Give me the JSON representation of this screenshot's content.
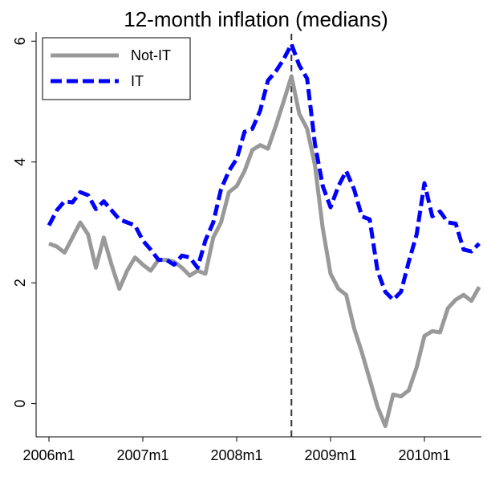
{
  "chart_data": {
    "type": "line",
    "title": "12-month inflation (medians)",
    "x": [
      "2006m1",
      "2006m2",
      "2006m3",
      "2006m4",
      "2006m5",
      "2006m6",
      "2006m7",
      "2006m8",
      "2006m9",
      "2006m10",
      "2006m11",
      "2006m12",
      "2007m1",
      "2007m2",
      "2007m3",
      "2007m4",
      "2007m5",
      "2007m6",
      "2007m7",
      "2007m8",
      "2007m9",
      "2007m10",
      "2007m11",
      "2007m12",
      "2008m1",
      "2008m2",
      "2008m3",
      "2008m4",
      "2008m5",
      "2008m6",
      "2008m7",
      "2008m8",
      "2008m9",
      "2008m10",
      "2008m11",
      "2008m12",
      "2009m1",
      "2009m2",
      "2009m3",
      "2009m4",
      "2009m5",
      "2009m6",
      "2009m7",
      "2009m8",
      "2009m9",
      "2009m10",
      "2009m11",
      "2009m12",
      "2010m1",
      "2010m2",
      "2010m3",
      "2010m4",
      "2010m5",
      "2010m6",
      "2010m7",
      "2010m8"
    ],
    "series": [
      {
        "name": "Not-IT",
        "color": "#999999",
        "dash": false,
        "values": [
          2.65,
          2.6,
          2.5,
          2.75,
          3.0,
          2.8,
          2.25,
          2.75,
          2.3,
          1.9,
          2.2,
          2.42,
          2.3,
          2.2,
          2.38,
          2.38,
          2.35,
          2.25,
          2.12,
          2.2,
          2.15,
          2.75,
          3.0,
          3.5,
          3.6,
          3.85,
          4.2,
          4.28,
          4.22,
          4.6,
          5.0,
          5.42,
          4.8,
          4.55,
          3.95,
          2.9,
          2.15,
          1.9,
          1.8,
          1.25,
          0.85,
          0.4,
          -0.05,
          -0.37,
          0.15,
          0.12,
          0.22,
          0.6,
          1.12,
          1.2,
          1.18,
          1.58,
          1.72,
          1.8,
          1.7,
          1.93
        ]
      },
      {
        "name": "IT",
        "color": "#0000ff",
        "dash": true,
        "values": [
          2.95,
          3.2,
          3.35,
          3.33,
          3.5,
          3.45,
          3.22,
          3.35,
          3.2,
          3.05,
          3.0,
          2.95,
          2.7,
          2.55,
          2.38,
          2.38,
          2.3,
          2.45,
          2.42,
          2.25,
          2.7,
          3.0,
          3.55,
          3.85,
          4.05,
          4.5,
          4.55,
          4.85,
          5.35,
          5.5,
          5.7,
          5.95,
          5.6,
          5.38,
          4.3,
          3.6,
          3.25,
          3.6,
          3.85,
          3.55,
          3.1,
          3.05,
          2.2,
          1.85,
          1.72,
          1.85,
          2.35,
          2.8,
          3.65,
          3.1,
          3.18,
          3.0,
          2.98,
          2.55,
          2.52,
          2.65
        ]
      }
    ],
    "vline_x": "2008m8",
    "ylim": [
      -0.55,
      6.15
    ],
    "yticks": [
      0,
      2,
      4,
      6
    ],
    "legend": "top-left"
  }
}
